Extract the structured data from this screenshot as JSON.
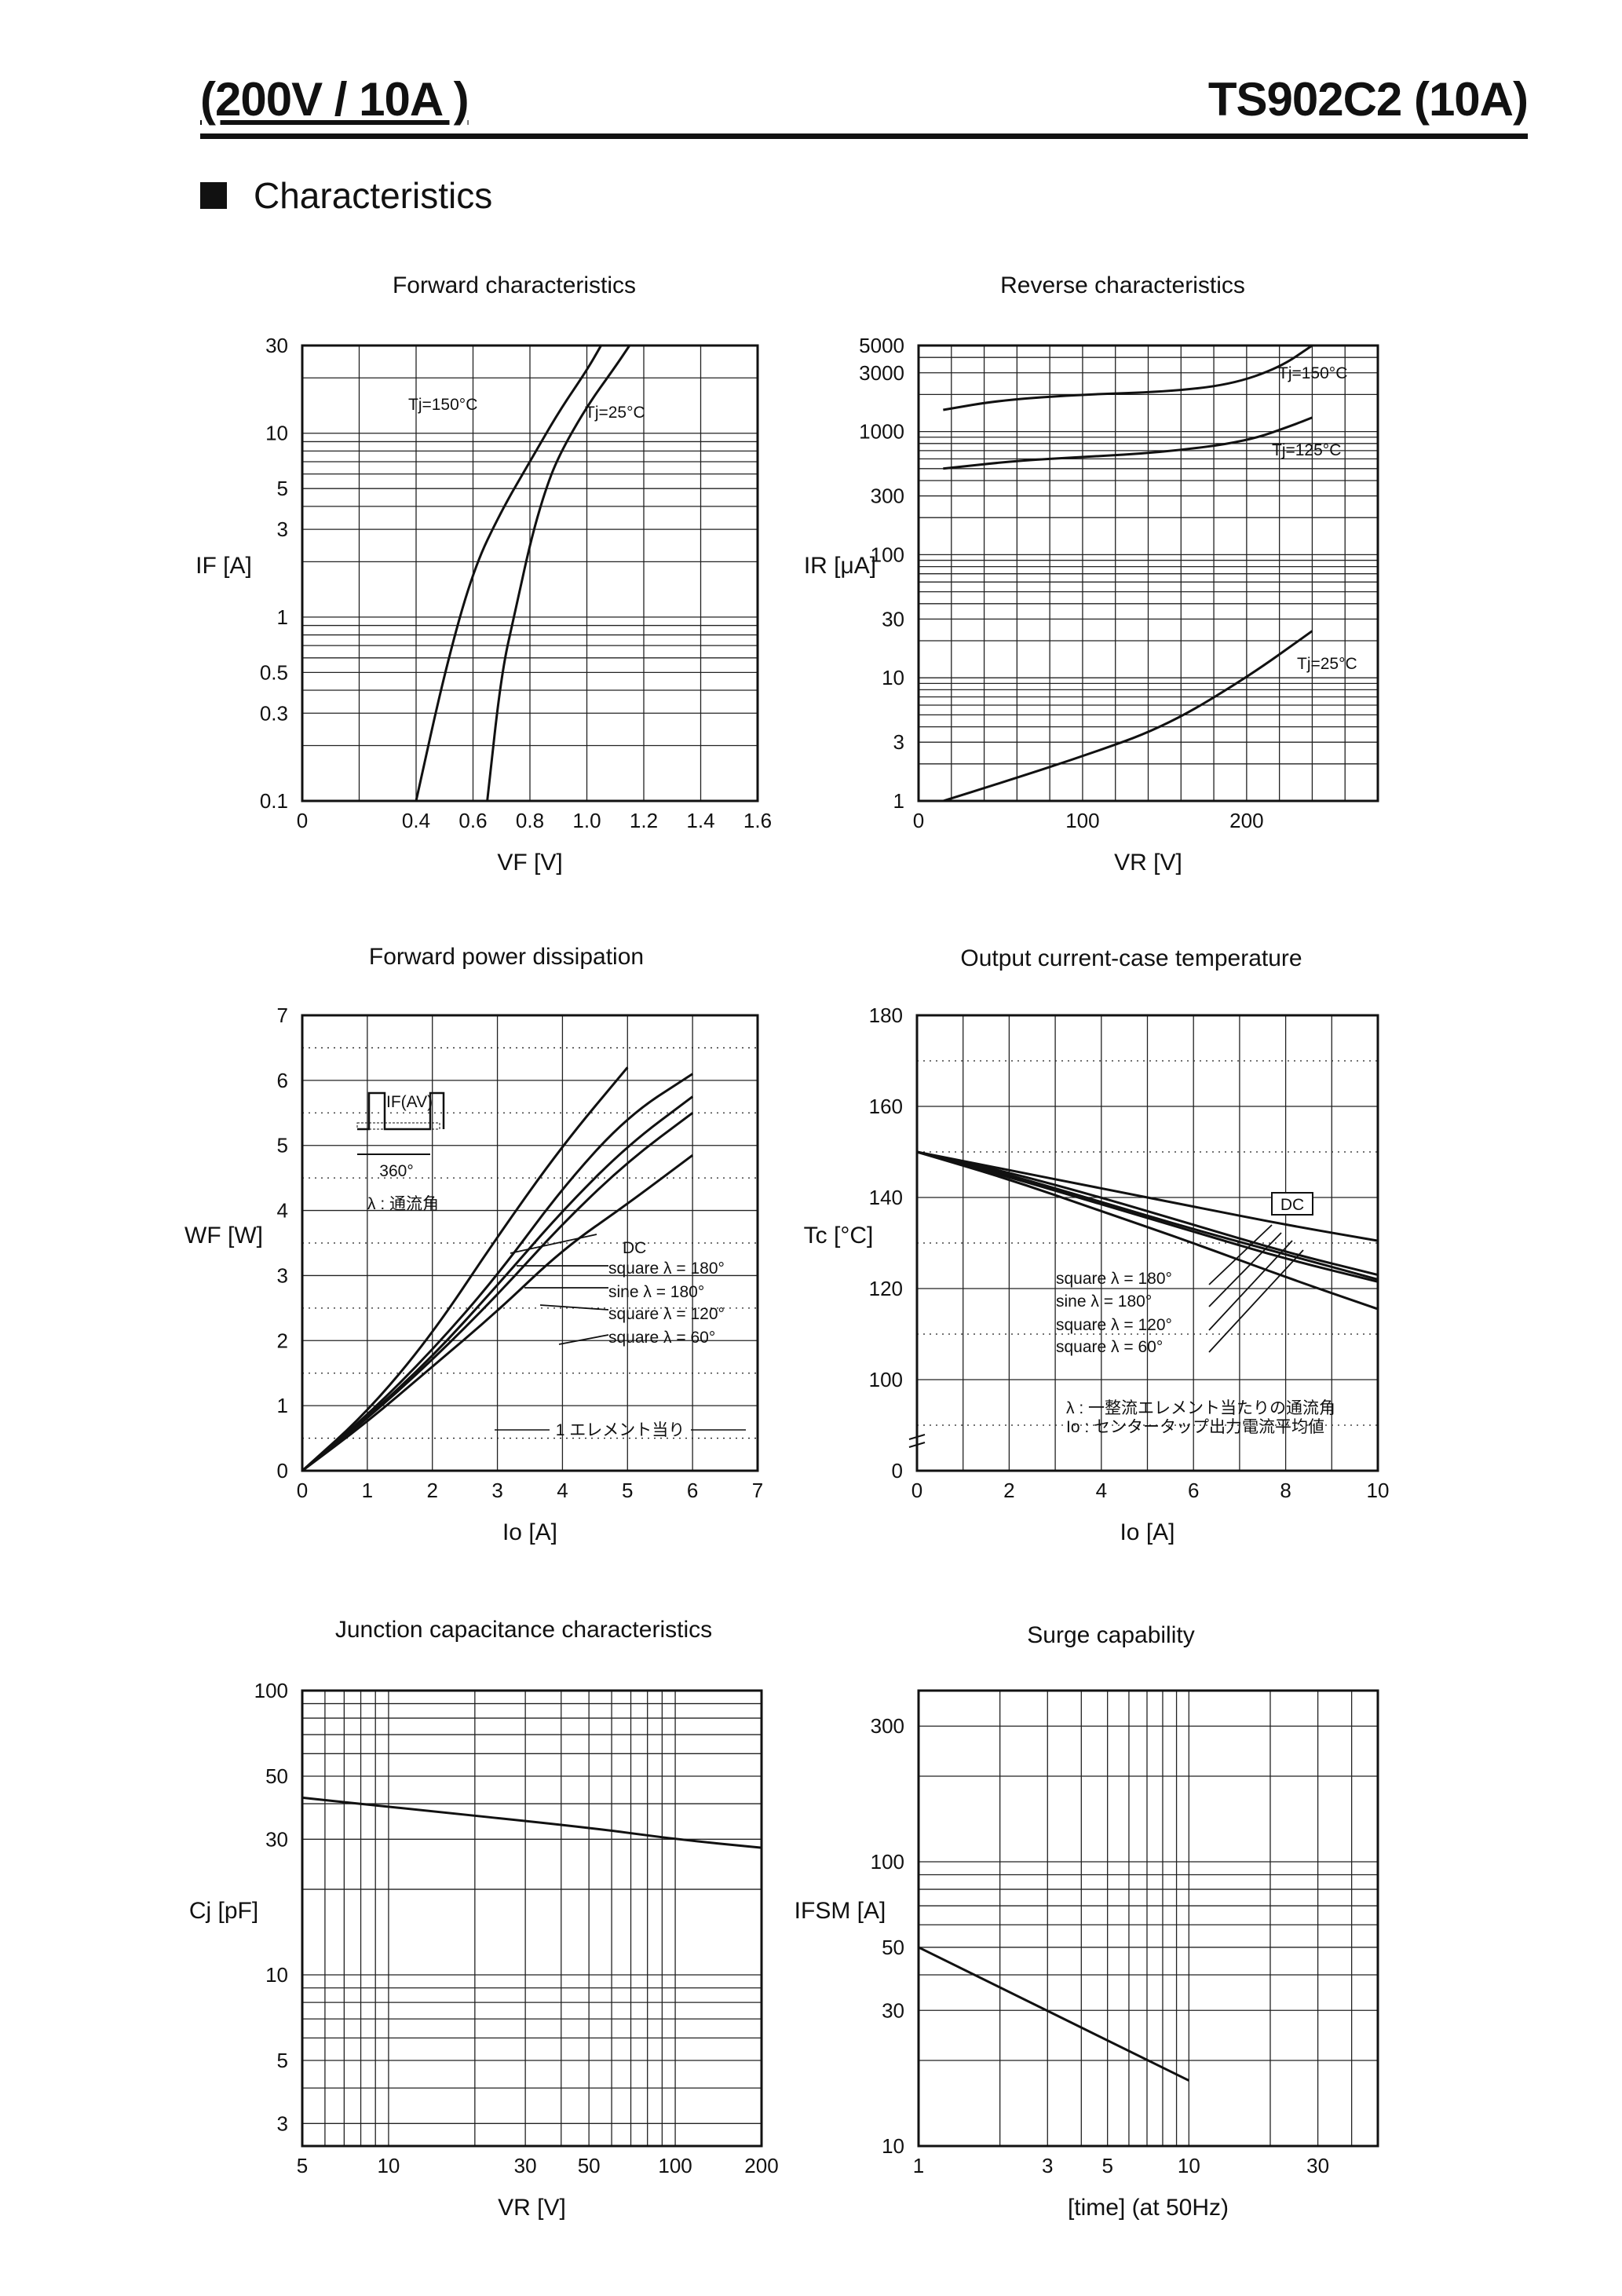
{
  "header": {
    "left": "(200V / 10A )",
    "right": "TS902C2 (10A)"
  },
  "section_title": "Characteristics",
  "chart_data": [
    {
      "id": "forward",
      "type": "line",
      "title": "Forward characteristics",
      "xlabel": "VF [V]",
      "ylabel": "IF [A]",
      "xlim": [
        0,
        1.6
      ],
      "ylim": [
        0.1,
        30
      ],
      "yscale": "log",
      "x_ticks": [
        "0",
        "0.4",
        "0.6",
        "0.8",
        "1.0",
        "1.2",
        "1.4",
        "1.6"
      ],
      "y_ticks": [
        "0.1",
        "0.3",
        "0.5",
        "1",
        "3",
        "5",
        "10",
        "30"
      ],
      "series": [
        {
          "name": "Tj=150°C",
          "points": [
            [
              0.4,
              0.1
            ],
            [
              0.5,
              0.5
            ],
            [
              0.6,
              1.8
            ],
            [
              0.7,
              3.8
            ],
            [
              0.8,
              7
            ],
            [
              0.9,
              13
            ],
            [
              1.0,
              22
            ],
            [
              1.05,
              30
            ]
          ]
        },
        {
          "name": "Tj=25°C",
          "points": [
            [
              0.65,
              0.1
            ],
            [
              0.7,
              0.5
            ],
            [
              0.75,
              1.1
            ],
            [
              0.8,
              2.5
            ],
            [
              0.85,
              4.7
            ],
            [
              0.9,
              7.5
            ],
            [
              1.0,
              14
            ],
            [
              1.1,
              23
            ],
            [
              1.15,
              30
            ]
          ]
        }
      ]
    },
    {
      "id": "reverse",
      "type": "line",
      "title": "Reverse characteristics",
      "xlabel": "VR [V]",
      "ylabel": "IR [μA]",
      "xlim": [
        0,
        280
      ],
      "ylim": [
        1,
        5000
      ],
      "yscale": "log",
      "x_ticks": [
        "0",
        "100",
        "200"
      ],
      "y_ticks": [
        "1",
        "3",
        "10",
        "30",
        "100",
        "300",
        "1000",
        "3000",
        "5000"
      ],
      "series": [
        {
          "name": "Tj=150°C",
          "points": [
            [
              15,
              1500
            ],
            [
              50,
              1800
            ],
            [
              100,
              2000
            ],
            [
              150,
              2100
            ],
            [
              190,
              2400
            ],
            [
              220,
              3300
            ],
            [
              240,
              5000
            ]
          ]
        },
        {
          "name": "Tj=125°C",
          "points": [
            [
              15,
              500
            ],
            [
              60,
              580
            ],
            [
              100,
              620
            ],
            [
              150,
              680
            ],
            [
              200,
              830
            ],
            [
              230,
              1150
            ],
            [
              240,
              1300
            ]
          ]
        },
        {
          "name": "Tj=25°C",
          "points": [
            [
              15,
              1
            ],
            [
              50,
              1.4
            ],
            [
              100,
              2.3
            ],
            [
              150,
              4
            ],
            [
              200,
              10
            ],
            [
              240,
              24
            ]
          ]
        }
      ]
    },
    {
      "id": "power",
      "type": "line",
      "title": "Forward power dissipation",
      "xlabel": "Io [A]",
      "ylabel": "WF [W]",
      "xlim": [
        0,
        7
      ],
      "ylim": [
        0,
        7
      ],
      "x_ticks": [
        "0",
        "1",
        "2",
        "3",
        "4",
        "5",
        "6",
        "7"
      ],
      "y_ticks": [
        "0",
        "1",
        "2",
        "3",
        "4",
        "5",
        "6",
        "7"
      ],
      "series": [
        {
          "name": "square λ= 60°",
          "points": [
            [
              0,
              0
            ],
            [
              1,
              0.9
            ],
            [
              2,
              2.1
            ],
            [
              3,
              3.6
            ],
            [
              4,
              5.0
            ],
            [
              5,
              6.2
            ]
          ]
        },
        {
          "name": "square λ=120°",
          "points": [
            [
              0,
              0
            ],
            [
              1,
              0.85
            ],
            [
              2,
              1.85
            ],
            [
              3,
              3.0
            ],
            [
              4,
              4.35
            ],
            [
              5,
              5.45
            ],
            [
              6,
              6.1
            ]
          ]
        },
        {
          "name": "sine λ=180°",
          "points": [
            [
              0,
              0
            ],
            [
              1,
              0.82
            ],
            [
              2,
              1.75
            ],
            [
              3,
              2.85
            ],
            [
              4,
              4.0
            ],
            [
              5,
              5.0
            ],
            [
              6,
              5.75
            ]
          ]
        },
        {
          "name": "square λ=180°",
          "points": [
            [
              0,
              0
            ],
            [
              1,
              0.8
            ],
            [
              2,
              1.7
            ],
            [
              3,
              2.7
            ],
            [
              4,
              3.8
            ],
            [
              5,
              4.75
            ],
            [
              6,
              5.5
            ]
          ]
        },
        {
          "name": "DC",
          "points": [
            [
              0,
              0
            ],
            [
              1,
              0.75
            ],
            [
              2,
              1.6
            ],
            [
              3,
              2.45
            ],
            [
              4,
              3.4
            ],
            [
              5,
              4.1
            ],
            [
              6,
              4.85
            ]
          ]
        }
      ],
      "annotations": [
        "IF(AV)",
        "360°",
        "λ : 通流角",
        "DC",
        "square λ = 180°",
        "sine λ = 180°",
        "square λ = 120°",
        "square λ = 60°",
        "1 エレメント当り"
      ]
    },
    {
      "id": "output",
      "type": "line",
      "title": "Output current-case temperature",
      "xlabel": "Io [A]",
      "ylabel": "Tc [°C]",
      "xlim": [
        0,
        10
      ],
      "ylim": [
        80,
        180
      ],
      "y_break": true,
      "x_ticks": [
        "0",
        "2",
        "4",
        "6",
        "8",
        "10"
      ],
      "y_ticks": [
        "0",
        "100",
        "120",
        "140",
        "160",
        "180"
      ],
      "series": [
        {
          "name": "DC",
          "points": [
            [
              0,
              150
            ],
            [
              2,
              146
            ],
            [
              4,
              142
            ],
            [
              6,
              138
            ],
            [
              8,
              134
            ],
            [
              10,
              130.5
            ]
          ]
        },
        {
          "name": "square λ=180°",
          "points": [
            [
              0,
              150
            ],
            [
              2,
              145.5
            ],
            [
              4,
              140
            ],
            [
              6,
              134
            ],
            [
              8,
              128
            ],
            [
              10,
              123
            ]
          ]
        },
        {
          "name": "sine λ=180°",
          "points": [
            [
              0,
              150
            ],
            [
              2,
              145
            ],
            [
              4,
              139
            ],
            [
              6,
              133
            ],
            [
              8,
              127.5
            ],
            [
              10,
              122
            ]
          ]
        },
        {
          "name": "square λ=120°",
          "points": [
            [
              0,
              150
            ],
            [
              2,
              144.5
            ],
            [
              4,
              138.5
            ],
            [
              6,
              132.5
            ],
            [
              8,
              126.5
            ],
            [
              10,
              121.5
            ]
          ]
        },
        {
          "name": "square λ=60°",
          "points": [
            [
              0,
              150
            ],
            [
              2,
              144
            ],
            [
              4,
              137
            ],
            [
              6,
              130
            ],
            [
              8,
              122.5
            ],
            [
              10,
              115.5
            ]
          ]
        }
      ],
      "annotations": [
        "DC",
        "square λ = 180°",
        "sine λ = 180°",
        "square λ = 120°",
        "square λ = 60°",
        "λ : 一整流エレメント当たりの通流角",
        "Io : センタータップ出力電流平均値"
      ]
    },
    {
      "id": "capacitance",
      "type": "line",
      "title": "Junction capacitance characteristics",
      "xlabel": "VR [V]",
      "ylabel": "Cj [pF]",
      "xlim": [
        5,
        200
      ],
      "ylim": [
        2.5,
        100
      ],
      "xscale": "log",
      "yscale": "log",
      "x_ticks": [
        "5",
        "10",
        "30",
        "50",
        "100",
        "200"
      ],
      "y_ticks": [
        "3",
        "5",
        "10",
        "30",
        "50",
        "100"
      ],
      "series": [
        {
          "name": "Cj",
          "points": [
            [
              5,
              42
            ],
            [
              10,
              39
            ],
            [
              50,
              33
            ],
            [
              100,
              30
            ],
            [
              200,
              28
            ]
          ]
        }
      ]
    },
    {
      "id": "surge",
      "type": "line",
      "title": "Surge capability",
      "xlabel": "[time] (at 50Hz)",
      "ylabel": "IFSM [A]",
      "xlim": [
        1,
        50
      ],
      "ylim": [
        10,
        400
      ],
      "xscale": "log",
      "yscale": "log",
      "x_ticks": [
        "1",
        "3",
        "5",
        "10",
        "30"
      ],
      "y_ticks": [
        "10",
        "30",
        "50",
        "100",
        "300"
      ],
      "series": [
        {
          "name": "IFSM",
          "points": [
            [
              1,
              50
            ],
            [
              10,
              17
            ]
          ]
        }
      ]
    }
  ]
}
